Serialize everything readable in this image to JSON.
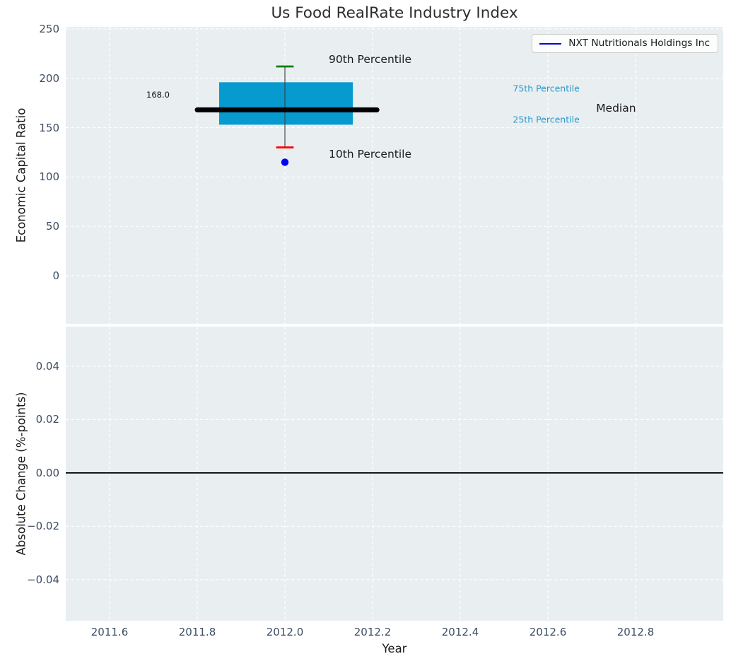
{
  "title": "Us Food RealRate Industry Index",
  "legend": {
    "label": "NXT Nutritionals Holdings Inc",
    "line_color": "#0000dd"
  },
  "colors": {
    "figure_bg": "#ffffff",
    "plot_bg": "#e9eef0",
    "grid": "#ffffff",
    "tick_label": "#3d4d63",
    "box_fill": "#069acf",
    "median_line": "#000000",
    "whisker": "#3f3f3f",
    "cap_90th": "#008000",
    "cap_10th": "#ff0000",
    "company_marker": "#0000ff",
    "percentile_label_cyan": "#2a9ace",
    "zero_line": "#000000"
  },
  "chart_data": [
    {
      "type": "box",
      "title": "Us Food RealRate Industry Index",
      "ylabel": "Economic Capital Ratio",
      "xlim": [
        2011.5,
        2013.0
      ],
      "ylim": [
        -48.7,
        252.1
      ],
      "grid": "white dashed on",
      "legend_position": "upper right",
      "xticks": [
        {
          "v": 2011.6,
          "label": "2011.6"
        },
        {
          "v": 2011.8,
          "label": "2011.8"
        },
        {
          "v": 2012.0,
          "label": "2012.0"
        },
        {
          "v": 2012.2,
          "label": "2012.2"
        },
        {
          "v": 2012.4,
          "label": "2012.4"
        },
        {
          "v": 2012.6,
          "label": "2012.6"
        },
        {
          "v": 2012.8,
          "label": "2012.8"
        }
      ],
      "yticks": [
        {
          "v": 0,
          "label": "0"
        },
        {
          "v": 50,
          "label": "50"
        },
        {
          "v": 100,
          "label": "100"
        },
        {
          "v": 150,
          "label": "150"
        },
        {
          "v": 200,
          "label": "200"
        },
        {
          "v": 250,
          "label": "250"
        }
      ],
      "box": {
        "x": 2012.0,
        "p90": 212,
        "p75": 196,
        "median": 168.0,
        "p25": 153,
        "p10": 130,
        "box_left": 2011.85,
        "box_right": 2012.155,
        "median_line_left": 2011.8,
        "median_line_right": 2012.21,
        "cap_half_width": 0.02,
        "company_point": {
          "x": 2012.0,
          "y": 115
        }
      },
      "annotations": [
        {
          "text": "90th Percentile",
          "x": 2012.1,
          "y": 219,
          "ha": "left",
          "color": "#1a1a1a",
          "size": 15.5
        },
        {
          "text": "10th Percentile",
          "x": 2012.1,
          "y": 123,
          "ha": "left",
          "color": "#1a1a1a",
          "size": 15.5
        },
        {
          "text": "75th Percentile",
          "x": 2012.52,
          "y": 190,
          "ha": "left",
          "color": "#2a9ace",
          "size": 12.5
        },
        {
          "text": "25th Percentile",
          "x": 2012.52,
          "y": 158,
          "ha": "left",
          "color": "#2a9ace",
          "size": 12.5
        },
        {
          "text": "Median",
          "x": 2012.71,
          "y": 170,
          "ha": "left",
          "color": "#1a1a1a",
          "size": 15.5
        },
        {
          "text": "168.0",
          "x": 2011.737,
          "y": 183,
          "ha": "right",
          "color": "#111111",
          "size": 11.5
        }
      ]
    },
    {
      "type": "line",
      "ylabel": "Absolute Change (%-points)",
      "xlabel": "Year",
      "xlim": [
        2011.5,
        2013.0
      ],
      "ylim": [
        -0.0554,
        0.0548
      ],
      "grid": "white dashed on",
      "zero_line": 0.0,
      "xticks": [
        {
          "v": 2011.6,
          "label": "2011.6"
        },
        {
          "v": 2011.8,
          "label": "2011.8"
        },
        {
          "v": 2012.0,
          "label": "2012.0"
        },
        {
          "v": 2012.2,
          "label": "2012.2"
        },
        {
          "v": 2012.4,
          "label": "2012.4"
        },
        {
          "v": 2012.6,
          "label": "2012.6"
        },
        {
          "v": 2012.8,
          "label": "2012.8"
        }
      ],
      "yticks": [
        {
          "v": -0.04,
          "label": "−0.04"
        },
        {
          "v": -0.02,
          "label": "−0.02"
        },
        {
          "v": 0.0,
          "label": "0.00"
        },
        {
          "v": 0.02,
          "label": "0.02"
        },
        {
          "v": 0.04,
          "label": "0.04"
        }
      ]
    }
  ],
  "x_axis_label": "Year"
}
